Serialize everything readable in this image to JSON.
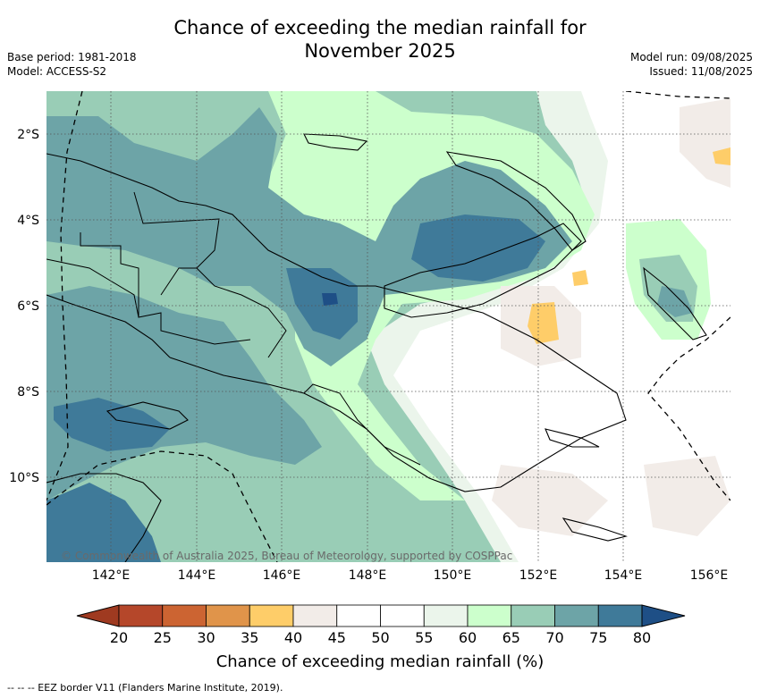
{
  "title_line1": "Chance of exceeding the median rainfall for",
  "title_line2": "November 2025",
  "base_period": "Base period: 1981-2018",
  "model": "Model: ACCESS-S2",
  "model_run": "Model run: 09/08/2025",
  "issued": "Issued: 11/08/2025",
  "credit": "© Commonwealth of Australia 2025, Bureau of Meteorology, supported by COSPPac",
  "lat_labels": [
    "2°S",
    "4°S",
    "6°S",
    "8°S",
    "10°S"
  ],
  "lon_labels": [
    "142°E",
    "144°E",
    "146°E",
    "148°E",
    "150°E",
    "152°E",
    "154°E",
    "156°E"
  ],
  "colorbar": {
    "ticks": [
      "20",
      "25",
      "30",
      "35",
      "40",
      "45",
      "50",
      "55",
      "60",
      "65",
      "70",
      "75",
      "80"
    ],
    "colors": [
      "#b5472a",
      "#cc6432",
      "#e0944a",
      "#fecd69",
      "#f2ece8",
      "#ffffff",
      "#ffffff",
      "#ebf5eb",
      "#ccffcc",
      "#99cdb6",
      "#6da4a7",
      "#3f7a99"
    ],
    "under_color": "#9f3a20",
    "over_color": "#1e4f86",
    "label": "Chance of exceeding median rainfall (%)"
  },
  "footer": "--  --  -- EEZ border V11 (Flanders Marine Institute, 2019)."
}
